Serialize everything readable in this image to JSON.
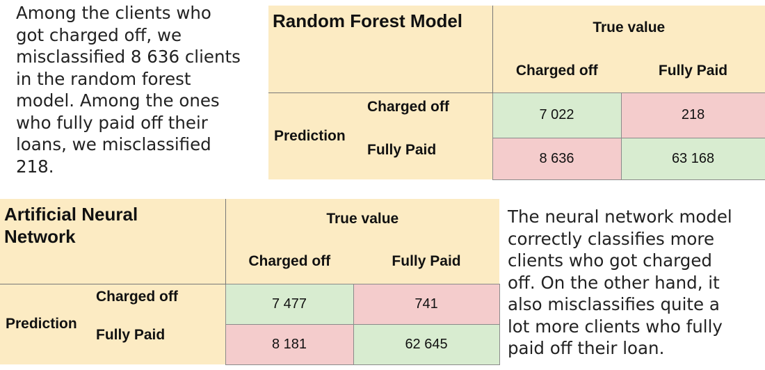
{
  "rf_paragraph": {
    "lines": [
      "Among the clients who",
      "got charged off, we",
      "misclassified 8 636 clients",
      "in the random forest",
      "model. Among the ones",
      "who fully paid off their",
      "loans, we misclassified",
      "218."
    ]
  },
  "rf_table": {
    "title": "Random Forest Model",
    "true_value": "True value",
    "columns": [
      "Charged off",
      "Fully Paid"
    ],
    "prediction": "Prediction",
    "rows": [
      {
        "label": "Charged off",
        "values": [
          "7 022",
          "218"
        ]
      },
      {
        "label": "Fully Paid",
        "values": [
          "8 636",
          "63 168"
        ]
      }
    ]
  },
  "ann_table": {
    "title_line1": "Artificial Neural",
    "title_line2": "Network",
    "true_value": "True value",
    "columns": [
      "Charged off",
      "Fully Paid"
    ],
    "prediction": "Prediction",
    "rows": [
      {
        "label": "Charged off",
        "values": [
          "7 477",
          "741"
        ]
      },
      {
        "label": "Fully Paid",
        "values": [
          "8 181",
          "62 645"
        ]
      }
    ]
  },
  "ann_paragraph": {
    "lines": [
      "The neural network model",
      "correctly classifies more",
      "clients who got charged",
      "off. On the other hand, it",
      "also misclassifies quite a",
      "lot more clients who fully",
      "paid off their loan."
    ]
  },
  "colors": {
    "header_bg": "#fcebc3",
    "correct_bg": "#d8ecd0",
    "misclassified_bg": "#f4cccc"
  }
}
